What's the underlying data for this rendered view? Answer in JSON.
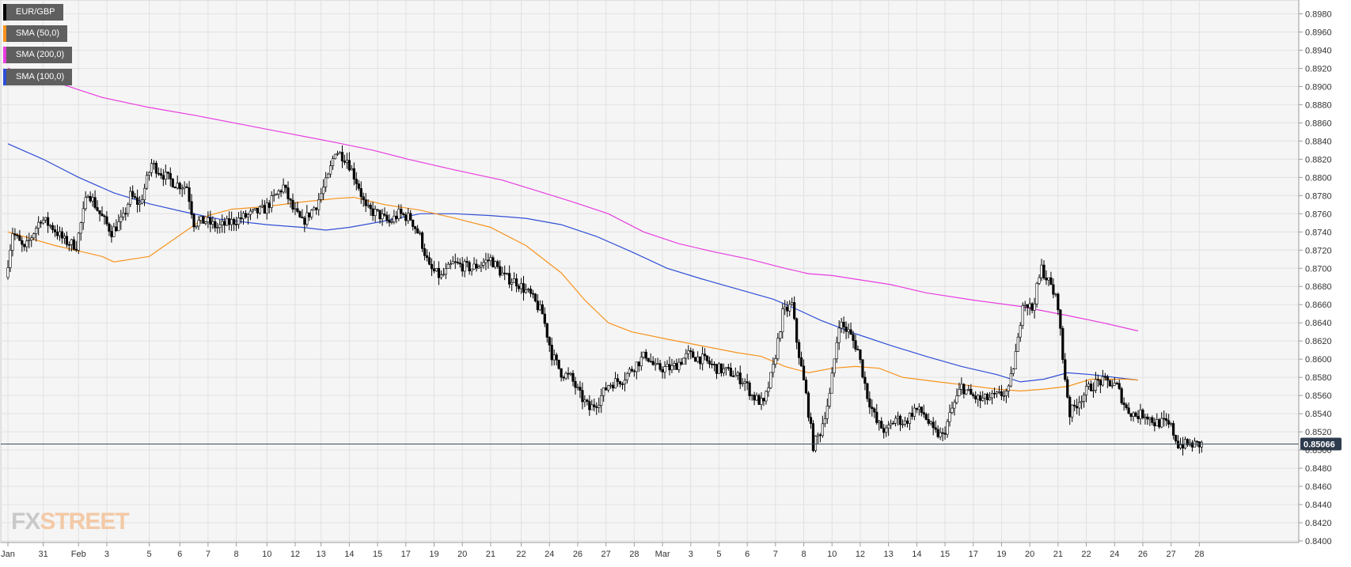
{
  "chart_data": {
    "type": "candlestick",
    "symbol": "EUR/GBP",
    "colors": {
      "background": "#f5f5f5",
      "grid": "#e2e2e2",
      "up_candle": "#ffffff",
      "down_candle": "#000000",
      "sma50": "#f7931e",
      "sma100": "#2f4fd6",
      "sma200": "#e83ce0",
      "price_line": "#3d4a5c",
      "price_badge": "#2e3b4e"
    },
    "legend": [
      {
        "label": "EUR/GBP",
        "color": "#000000"
      },
      {
        "label": "SMA (50,0)",
        "color": "#f7931e"
      },
      {
        "label": "SMA (200,0)",
        "color": "#e83ce0"
      },
      {
        "label": "SMA (100,0)",
        "color": "#2f4fd6"
      }
    ],
    "y_ticks": [
      "0.8980",
      "0.8960",
      "0.8940",
      "0.8920",
      "0.8900",
      "0.8880",
      "0.8860",
      "0.8840",
      "0.8820",
      "0.8800",
      "0.8780",
      "0.8760",
      "0.8740",
      "0.8720",
      "0.8700",
      "0.8680",
      "0.8660",
      "0.8640",
      "0.8620",
      "0.8600",
      "0.8580",
      "0.8560",
      "0.8540",
      "0.8520",
      "0.8500",
      "0.8480",
      "0.8460",
      "0.8440",
      "0.8420",
      "0.8400"
    ],
    "ylim": [
      0.84,
      0.899
    ],
    "current_price": "0.85066",
    "current_price_value": 0.85066,
    "x_labels": [
      "Jan",
      "31",
      "Feb",
      "3",
      "5",
      "6",
      "7",
      "8",
      "10",
      "12",
      "13",
      "14",
      "15",
      "17",
      "19",
      "20",
      "21",
      "22",
      "24",
      "26",
      "27",
      "28",
      "Mar",
      "3",
      "5",
      "6",
      "7",
      "8",
      "10",
      "12",
      "13",
      "14",
      "15",
      "17",
      "19",
      "20",
      "21",
      "22",
      "24",
      "26",
      "27",
      "28"
    ],
    "x_label_index": [
      0,
      15,
      30,
      42,
      60,
      73,
      85,
      97,
      110,
      122,
      133,
      145,
      157,
      169,
      181,
      193,
      205,
      218,
      230,
      242,
      254,
      266,
      278,
      290,
      302,
      314,
      326,
      338,
      350,
      362,
      374,
      386,
      398,
      410,
      422,
      434,
      446,
      458,
      470,
      482,
      494,
      506
    ],
    "n_bars": 508,
    "sma50": [
      [
        0,
        0.874
      ],
      [
        20,
        0.8725
      ],
      [
        40,
        0.8713
      ],
      [
        45,
        0.8707
      ],
      [
        60,
        0.8713
      ],
      [
        75,
        0.874
      ],
      [
        85,
        0.8758
      ],
      [
        95,
        0.8765
      ],
      [
        110,
        0.8768
      ],
      [
        125,
        0.8773
      ],
      [
        140,
        0.8777
      ],
      [
        147,
        0.8778
      ],
      [
        160,
        0.877
      ],
      [
        175,
        0.8764
      ],
      [
        190,
        0.8755
      ],
      [
        205,
        0.8745
      ],
      [
        220,
        0.8725
      ],
      [
        235,
        0.8695
      ],
      [
        245,
        0.8665
      ],
      [
        255,
        0.864
      ],
      [
        265,
        0.863
      ],
      [
        280,
        0.8622
      ],
      [
        290,
        0.8617
      ],
      [
        300,
        0.8612
      ],
      [
        310,
        0.8607
      ],
      [
        320,
        0.8603
      ],
      [
        330,
        0.8592
      ],
      [
        340,
        0.8585
      ],
      [
        350,
        0.859
      ],
      [
        360,
        0.8592
      ],
      [
        370,
        0.859
      ],
      [
        380,
        0.858
      ],
      [
        395,
        0.8575
      ],
      [
        405,
        0.8572
      ],
      [
        420,
        0.8567
      ],
      [
        430,
        0.8565
      ],
      [
        440,
        0.8567
      ],
      [
        450,
        0.857
      ],
      [
        460,
        0.8578
      ],
      [
        475,
        0.8578
      ],
      [
        480,
        0.8577
      ]
    ],
    "sma100": [
      [
        0,
        0.8837
      ],
      [
        15,
        0.882
      ],
      [
        30,
        0.88
      ],
      [
        45,
        0.8783
      ],
      [
        60,
        0.8771
      ],
      [
        75,
        0.8762
      ],
      [
        90,
        0.8754
      ],
      [
        110,
        0.8748
      ],
      [
        125,
        0.8745
      ],
      [
        135,
        0.8742
      ],
      [
        145,
        0.8745
      ],
      [
        160,
        0.8752
      ],
      [
        175,
        0.876
      ],
      [
        190,
        0.876
      ],
      [
        205,
        0.8758
      ],
      [
        220,
        0.8755
      ],
      [
        235,
        0.8748
      ],
      [
        250,
        0.8735
      ],
      [
        265,
        0.8718
      ],
      [
        280,
        0.87
      ],
      [
        295,
        0.8688
      ],
      [
        310,
        0.8677
      ],
      [
        325,
        0.8666
      ],
      [
        335,
        0.8655
      ],
      [
        345,
        0.8643
      ],
      [
        360,
        0.8628
      ],
      [
        375,
        0.8615
      ],
      [
        390,
        0.8603
      ],
      [
        405,
        0.8592
      ],
      [
        420,
        0.8583
      ],
      [
        430,
        0.8575
      ],
      [
        440,
        0.8578
      ],
      [
        450,
        0.8585
      ],
      [
        460,
        0.8583
      ],
      [
        470,
        0.858
      ],
      [
        480,
        0.8577
      ]
    ],
    "sma200": [
      [
        0,
        0.892
      ],
      [
        20,
        0.8905
      ],
      [
        40,
        0.8888
      ],
      [
        60,
        0.8877
      ],
      [
        80,
        0.8868
      ],
      [
        100,
        0.8858
      ],
      [
        120,
        0.8848
      ],
      [
        140,
        0.8838
      ],
      [
        155,
        0.883
      ],
      [
        170,
        0.882
      ],
      [
        190,
        0.8808
      ],
      [
        210,
        0.8797
      ],
      [
        225,
        0.8785
      ],
      [
        240,
        0.8773
      ],
      [
        255,
        0.876
      ],
      [
        270,
        0.874
      ],
      [
        285,
        0.8727
      ],
      [
        300,
        0.8718
      ],
      [
        315,
        0.871
      ],
      [
        330,
        0.87
      ],
      [
        340,
        0.8694
      ],
      [
        350,
        0.8692
      ],
      [
        360,
        0.8688
      ],
      [
        375,
        0.8682
      ],
      [
        390,
        0.8673
      ],
      [
        410,
        0.8665
      ],
      [
        430,
        0.8658
      ],
      [
        450,
        0.8648
      ],
      [
        465,
        0.864
      ],
      [
        480,
        0.8631
      ]
    ],
    "price_path": [
      [
        0,
        0.869
      ],
      [
        3,
        0.874
      ],
      [
        8,
        0.872
      ],
      [
        15,
        0.8755
      ],
      [
        20,
        0.8745
      ],
      [
        25,
        0.873
      ],
      [
        30,
        0.8725
      ],
      [
        35,
        0.8785
      ],
      [
        40,
        0.876
      ],
      [
        45,
        0.874
      ],
      [
        50,
        0.8755
      ],
      [
        53,
        0.878
      ],
      [
        57,
        0.877
      ],
      [
        62,
        0.8815
      ],
      [
        67,
        0.8803
      ],
      [
        72,
        0.8793
      ],
      [
        77,
        0.879
      ],
      [
        80,
        0.875
      ],
      [
        85,
        0.8752
      ],
      [
        90,
        0.8745
      ],
      [
        95,
        0.875
      ],
      [
        100,
        0.8755
      ],
      [
        110,
        0.8765
      ],
      [
        118,
        0.879
      ],
      [
        122,
        0.8765
      ],
      [
        126,
        0.875
      ],
      [
        132,
        0.877
      ],
      [
        137,
        0.88
      ],
      [
        140,
        0.883
      ],
      [
        145,
        0.882
      ],
      [
        150,
        0.879
      ],
      [
        153,
        0.8765
      ],
      [
        158,
        0.876
      ],
      [
        163,
        0.875
      ],
      [
        167,
        0.876
      ],
      [
        172,
        0.8755
      ],
      [
        176,
        0.8735
      ],
      [
        180,
        0.87
      ],
      [
        185,
        0.869
      ],
      [
        190,
        0.8705
      ],
      [
        198,
        0.87
      ],
      [
        206,
        0.871
      ],
      [
        212,
        0.869
      ],
      [
        217,
        0.8685
      ],
      [
        223,
        0.867
      ],
      [
        228,
        0.865
      ],
      [
        232,
        0.8605
      ],
      [
        236,
        0.8585
      ],
      [
        240,
        0.858
      ],
      [
        244,
        0.856
      ],
      [
        248,
        0.8545
      ],
      [
        252,
        0.8555
      ],
      [
        256,
        0.8572
      ],
      [
        262,
        0.8578
      ],
      [
        268,
        0.8595
      ],
      [
        272,
        0.8605
      ],
      [
        276,
        0.859
      ],
      [
        283,
        0.859
      ],
      [
        290,
        0.8605
      ],
      [
        296,
        0.86
      ],
      [
        302,
        0.859
      ],
      [
        308,
        0.8585
      ],
      [
        314,
        0.8575
      ],
      [
        317,
        0.856
      ],
      [
        322,
        0.855
      ],
      [
        326,
        0.859
      ],
      [
        330,
        0.865
      ],
      [
        334,
        0.866
      ],
      [
        336,
        0.862
      ],
      [
        340,
        0.856
      ],
      [
        343,
        0.8505
      ],
      [
        346,
        0.852
      ],
      [
        350,
        0.856
      ],
      [
        354,
        0.864
      ],
      [
        358,
        0.863
      ],
      [
        362,
        0.861
      ],
      [
        366,
        0.856
      ],
      [
        370,
        0.853
      ],
      [
        374,
        0.852
      ],
      [
        378,
        0.8535
      ],
      [
        382,
        0.853
      ],
      [
        386,
        0.8545
      ],
      [
        390,
        0.854
      ],
      [
        394,
        0.852
      ],
      [
        398,
        0.8515
      ],
      [
        402,
        0.8545
      ],
      [
        406,
        0.857
      ],
      [
        410,
        0.856
      ],
      [
        414,
        0.8555
      ],
      [
        418,
        0.8557
      ],
      [
        422,
        0.856
      ],
      [
        426,
        0.8565
      ],
      [
        430,
        0.862
      ],
      [
        432,
        0.8665
      ],
      [
        436,
        0.8655
      ],
      [
        440,
        0.87
      ],
      [
        444,
        0.868
      ],
      [
        447,
        0.866
      ],
      [
        449,
        0.86
      ],
      [
        452,
        0.854
      ],
      [
        456,
        0.8555
      ],
      [
        460,
        0.8568
      ],
      [
        464,
        0.8575
      ],
      [
        468,
        0.8575
      ],
      [
        472,
        0.857
      ],
      [
        476,
        0.8545
      ],
      [
        480,
        0.8538
      ],
      [
        484,
        0.854
      ],
      [
        488,
        0.853
      ],
      [
        492,
        0.853
      ],
      [
        495,
        0.8525
      ],
      [
        498,
        0.8506
      ]
    ]
  }
}
